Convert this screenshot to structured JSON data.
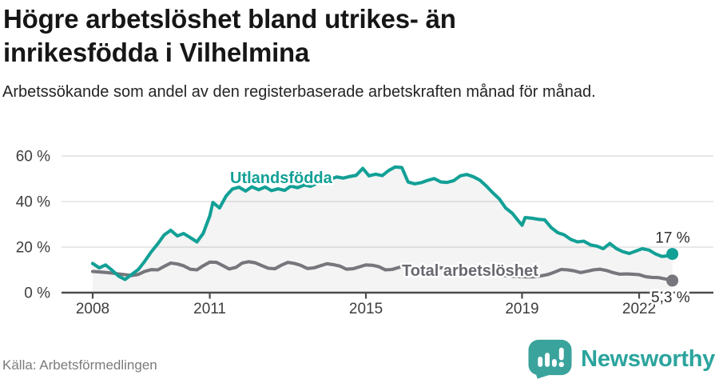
{
  "header": {
    "title": "Högre arbetslöshet bland utrikes- än inrikesfödda i Vilhelmina",
    "subtitle": "Arbetssökande som andel av den registerbaserade arbetskraften månad för månad."
  },
  "chart_data": {
    "type": "line",
    "title": "Högre arbetslöshet bland utrikes- än inrikesfödda i Vilhelmina",
    "xlabel": "",
    "ylabel": "",
    "x_unit": "year (monthly share of labour force)",
    "xlim": [
      2008,
      2023.1
    ],
    "ylim": [
      0,
      62
    ],
    "grid": "horizontal",
    "yticks": [
      0,
      20,
      40,
      60
    ],
    "ytick_labels": [
      "0 %",
      "20 %",
      "40 %",
      "60 %"
    ],
    "xticks": [
      2008,
      2011,
      2015,
      2019,
      2022
    ],
    "xtick_labels": [
      "2008",
      "2011",
      "2015",
      "2019",
      "2022"
    ],
    "legend_position": "inline-labels",
    "series": [
      {
        "name": "Utlandsfödda",
        "color": "#12a096",
        "end_label": "17 %",
        "end_label_dy": -14,
        "area_fill": true,
        "label_pos": {
          "t": 2011.52,
          "v": 48.1
        },
        "points": [
          [
            2008.0,
            12.8
          ],
          [
            2008.17,
            10.9
          ],
          [
            2008.33,
            12.2
          ],
          [
            2008.5,
            9.8
          ],
          [
            2008.67,
            7.2
          ],
          [
            2008.83,
            5.8
          ],
          [
            2009.0,
            8.0
          ],
          [
            2009.17,
            10.2
          ],
          [
            2009.33,
            13.7
          ],
          [
            2009.5,
            17.9
          ],
          [
            2009.67,
            21.5
          ],
          [
            2009.83,
            25.3
          ],
          [
            2010.0,
            27.4
          ],
          [
            2010.17,
            24.9
          ],
          [
            2010.33,
            26.0
          ],
          [
            2010.5,
            24.2
          ],
          [
            2010.67,
            22.3
          ],
          [
            2010.83,
            26.0
          ],
          [
            2011.0,
            33.7
          ],
          [
            2011.08,
            39.6
          ],
          [
            2011.25,
            37.2
          ],
          [
            2011.42,
            42.5
          ],
          [
            2011.58,
            45.5
          ],
          [
            2011.75,
            46.3
          ],
          [
            2011.92,
            44.6
          ],
          [
            2012.08,
            46.5
          ],
          [
            2012.25,
            45.2
          ],
          [
            2012.42,
            46.4
          ],
          [
            2012.58,
            44.8
          ],
          [
            2012.75,
            45.6
          ],
          [
            2012.92,
            44.9
          ],
          [
            2013.08,
            46.8
          ],
          [
            2013.25,
            46.1
          ],
          [
            2013.42,
            47.3
          ],
          [
            2013.58,
            46.7
          ],
          [
            2013.75,
            48.0
          ],
          [
            2013.92,
            48.8
          ],
          [
            2014.08,
            49.8
          ],
          [
            2014.25,
            50.8
          ],
          [
            2014.42,
            50.3
          ],
          [
            2014.58,
            51.0
          ],
          [
            2014.75,
            51.5
          ],
          [
            2014.92,
            54.6
          ],
          [
            2015.08,
            51.3
          ],
          [
            2015.25,
            52.0
          ],
          [
            2015.42,
            51.4
          ],
          [
            2015.58,
            53.6
          ],
          [
            2015.75,
            55.2
          ],
          [
            2015.92,
            54.9
          ],
          [
            2016.08,
            48.6
          ],
          [
            2016.25,
            47.8
          ],
          [
            2016.42,
            48.3
          ],
          [
            2016.58,
            49.3
          ],
          [
            2016.75,
            50.1
          ],
          [
            2016.92,
            48.6
          ],
          [
            2017.08,
            48.4
          ],
          [
            2017.25,
            49.2
          ],
          [
            2017.42,
            51.3
          ],
          [
            2017.58,
            51.9
          ],
          [
            2017.75,
            50.9
          ],
          [
            2017.92,
            49.4
          ],
          [
            2018.08,
            46.9
          ],
          [
            2018.25,
            43.9
          ],
          [
            2018.42,
            41.1
          ],
          [
            2018.58,
            37.2
          ],
          [
            2018.75,
            34.9
          ],
          [
            2018.92,
            31.2
          ],
          [
            2019.0,
            29.6
          ],
          [
            2019.08,
            33.0
          ],
          [
            2019.25,
            32.7
          ],
          [
            2019.42,
            32.2
          ],
          [
            2019.58,
            32.0
          ],
          [
            2019.75,
            28.5
          ],
          [
            2019.92,
            26.3
          ],
          [
            2020.08,
            25.4
          ],
          [
            2020.25,
            23.4
          ],
          [
            2020.42,
            22.3
          ],
          [
            2020.58,
            22.6
          ],
          [
            2020.75,
            21.0
          ],
          [
            2020.92,
            20.4
          ],
          [
            2021.08,
            19.3
          ],
          [
            2021.25,
            21.6
          ],
          [
            2021.42,
            19.3
          ],
          [
            2021.58,
            18.0
          ],
          [
            2021.75,
            17.2
          ],
          [
            2021.92,
            18.3
          ],
          [
            2022.08,
            19.3
          ],
          [
            2022.25,
            18.7
          ],
          [
            2022.42,
            17.0
          ],
          [
            2022.58,
            15.9
          ],
          [
            2022.75,
            16.2
          ],
          [
            2022.85,
            17.0
          ]
        ]
      },
      {
        "name": "Total arbetslöshet",
        "color": "#76767c",
        "label_color": "#686870",
        "end_label": "5,3 %",
        "end_label_dy": 27,
        "area_fill": false,
        "label_pos": {
          "t": 2015.92,
          "v": 7.4
        },
        "points": [
          [
            2008.0,
            9.3
          ],
          [
            2008.17,
            9.1
          ],
          [
            2008.33,
            8.9
          ],
          [
            2008.5,
            8.6
          ],
          [
            2008.67,
            8.2
          ],
          [
            2008.83,
            7.9
          ],
          [
            2009.0,
            7.5
          ],
          [
            2009.17,
            8.0
          ],
          [
            2009.33,
            9.3
          ],
          [
            2009.5,
            10.1
          ],
          [
            2009.67,
            10.0
          ],
          [
            2009.83,
            11.5
          ],
          [
            2010.0,
            13.0
          ],
          [
            2010.17,
            12.6
          ],
          [
            2010.33,
            11.8
          ],
          [
            2010.5,
            10.3
          ],
          [
            2010.67,
            10.0
          ],
          [
            2010.83,
            11.8
          ],
          [
            2011.0,
            13.4
          ],
          [
            2011.17,
            13.3
          ],
          [
            2011.33,
            11.9
          ],
          [
            2011.5,
            10.4
          ],
          [
            2011.67,
            11.1
          ],
          [
            2011.83,
            13.0
          ],
          [
            2012.0,
            13.6
          ],
          [
            2012.17,
            13.1
          ],
          [
            2012.33,
            11.9
          ],
          [
            2012.5,
            10.7
          ],
          [
            2012.67,
            10.5
          ],
          [
            2012.83,
            12.0
          ],
          [
            2013.0,
            13.3
          ],
          [
            2013.17,
            12.8
          ],
          [
            2013.33,
            12.0
          ],
          [
            2013.5,
            10.6
          ],
          [
            2013.67,
            10.9
          ],
          [
            2013.83,
            11.8
          ],
          [
            2014.0,
            12.7
          ],
          [
            2014.17,
            12.3
          ],
          [
            2014.33,
            11.7
          ],
          [
            2014.5,
            10.3
          ],
          [
            2014.67,
            10.5
          ],
          [
            2014.83,
            11.3
          ],
          [
            2015.0,
            12.2
          ],
          [
            2015.17,
            12.0
          ],
          [
            2015.33,
            11.4
          ],
          [
            2015.5,
            10.0
          ],
          [
            2015.67,
            10.2
          ],
          [
            2015.83,
            11.0
          ],
          [
            2016.0,
            11.8
          ],
          [
            2016.17,
            11.6
          ],
          [
            2016.33,
            11.0
          ],
          [
            2016.5,
            10.0
          ],
          [
            2016.67,
            10.4
          ],
          [
            2016.83,
            11.0
          ],
          [
            2017.0,
            10.8
          ],
          [
            2017.17,
            10.4
          ],
          [
            2017.33,
            10.0
          ],
          [
            2017.5,
            9.4
          ],
          [
            2017.67,
            9.2
          ],
          [
            2017.83,
            9.0
          ],
          [
            2018.0,
            8.6
          ],
          [
            2018.17,
            8.2
          ],
          [
            2018.33,
            7.9
          ],
          [
            2018.5,
            7.5
          ],
          [
            2018.67,
            7.3
          ],
          [
            2018.83,
            7.1
          ],
          [
            2019.0,
            7.0
          ],
          [
            2019.17,
            6.9
          ],
          [
            2019.33,
            7.0
          ],
          [
            2019.5,
            7.4
          ],
          [
            2019.67,
            8.0
          ],
          [
            2019.83,
            9.0
          ],
          [
            2020.0,
            10.2
          ],
          [
            2020.17,
            10.0
          ],
          [
            2020.33,
            9.6
          ],
          [
            2020.5,
            8.8
          ],
          [
            2020.67,
            9.4
          ],
          [
            2020.83,
            10.0
          ],
          [
            2021.0,
            10.3
          ],
          [
            2021.17,
            9.7
          ],
          [
            2021.33,
            8.8
          ],
          [
            2021.5,
            8.1
          ],
          [
            2021.67,
            8.2
          ],
          [
            2021.83,
            8.1
          ],
          [
            2022.0,
            7.9
          ],
          [
            2022.17,
            7.0
          ],
          [
            2022.33,
            6.7
          ],
          [
            2022.5,
            6.6
          ],
          [
            2022.67,
            6.0
          ],
          [
            2022.85,
            5.3
          ]
        ]
      }
    ]
  },
  "footer": {
    "source": "Källa: Arbetsförmedlingen",
    "brand": "Newsworthy"
  },
  "colors": {
    "accent_teal": "#12a096",
    "line_gray": "#76767c",
    "grid": "#d8d8d8",
    "axis": "#4c4c4c",
    "axis_text": "#3d3d3d",
    "annotation_text": "#2e2e2e",
    "area_fill": "rgba(0,0,0,0.045)",
    "logo_teal": "#3aa39c",
    "wordmark_teal": "#2aa49d"
  }
}
